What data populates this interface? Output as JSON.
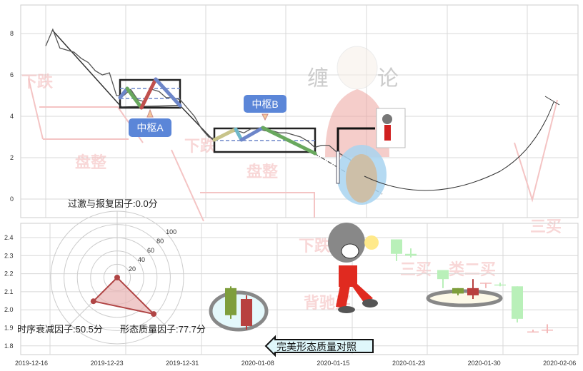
{
  "chart_data": [
    {
      "type": "line",
      "panel": "top",
      "ylim": [
        -1,
        9.3
      ],
      "y_ticks": [
        "0",
        "2",
        "4",
        "6",
        "8"
      ],
      "grid": true,
      "price": [
        7.4,
        8.2,
        7.3,
        7.2,
        7.1,
        6.8,
        6.6,
        6.2,
        6.0,
        6.1,
        5.0,
        5.0,
        5.3,
        4.8,
        4.7,
        5.3,
        5.2,
        4.9,
        4.9,
        4.8,
        4.4,
        4.0,
        3.4,
        3.0,
        2.9,
        3.1,
        3.2,
        3.3,
        3.2,
        3.4,
        3.4,
        3.3,
        3.3,
        3.2,
        3.2,
        3.1,
        3.0,
        2.8,
        2.5,
        2.6,
        2.6,
        2.3,
        2.1,
        1.9,
        1.4,
        1.3
      ],
      "zhongshu": [
        {
          "label": "中枢A",
          "high": 5.8,
          "low": 4.4,
          "upper_dash": 5.4,
          "lower_dash": 4.9
        },
        {
          "label": "中枢B",
          "high": 3.4,
          "low": 2.3,
          "upper_dash": 3.4,
          "lower_dash": 2.8
        }
      ],
      "colors": {
        "price": "#555555",
        "box": "#222222",
        "label_bg": "#5b86d8",
        "stroke_blue": "#6d86c9",
        "stroke_green": "#69a85e",
        "stroke_red": "#c0504d",
        "stroke_tan": "#c8c48a",
        "stroke_cyan": "#6fb8c8"
      }
    },
    {
      "type": "candlestick",
      "panel": "bottom",
      "ylim": [
        1.75,
        2.48
      ],
      "y_ticks": [
        "1.8",
        "1.9",
        "2.0",
        "2.1",
        "2.2",
        "2.3",
        "2.4"
      ],
      "x_ticks": [
        "2019-12-16",
        "2019-12-23",
        "2019-12-31",
        "2020-01-08",
        "2020-01-15",
        "2020-01-23",
        "2020-01-30",
        "2020-02-06"
      ],
      "grid": true,
      "candles": [
        {
          "open": 1.97,
          "close": 2.12,
          "high": 2.13,
          "low": 1.95,
          "color": "#7e9e3c"
        },
        {
          "open": 2.06,
          "close": 1.91,
          "high": 2.08,
          "low": 1.89,
          "color": "#b8403f"
        },
        {
          "open": 2.39,
          "close": 2.31,
          "high": 2.39,
          "low": 2.27,
          "color": "#b9f0b9"
        },
        {
          "open": 2.31,
          "close": 2.3,
          "high": 2.34,
          "low": 2.29,
          "color": "#b9f0b9"
        },
        {
          "open": 2.22,
          "close": 2.17,
          "high": 2.22,
          "low": 2.12,
          "color": "#b9f0b9"
        },
        {
          "open": 2.12,
          "close": 2.09,
          "high": 2.12,
          "low": 2.08,
          "color": "#7e9e3c"
        },
        {
          "open": 2.08,
          "close": 2.12,
          "high": 2.17,
          "low": 2.06,
          "color": "#b8403f"
        },
        {
          "open": 2.15,
          "close": 2.15,
          "high": 2.15,
          "low": 2.12,
          "color": "#f4b8b8"
        },
        {
          "open": 2.14,
          "close": 2.14,
          "high": 2.15,
          "low": 2.13,
          "color": "#b9f0b9"
        },
        {
          "open": 2.13,
          "close": 1.95,
          "high": 2.13,
          "low": 1.93,
          "color": "#b9f0b9"
        },
        {
          "open": 1.88,
          "close": 1.88,
          "high": 1.89,
          "low": 1.88,
          "color": "#f4b8b8"
        },
        {
          "open": 1.89,
          "close": 1.89,
          "high": 1.92,
          "low": 1.87,
          "color": "#f4b8b8"
        }
      ]
    },
    {
      "type": "radar",
      "ring_ticks": [
        "20",
        "40",
        "60",
        "80",
        "100"
      ],
      "axes": [
        {
          "label": "过激与报复因子:0.0分",
          "value": 0.0
        },
        {
          "label": "时序衰减因子:50.5分",
          "value": 50.5
        },
        {
          "label": "形态质量因子:77.7分",
          "value": 77.7
        }
      ],
      "colors": {
        "fill": "#e8b4b4",
        "stroke": "#b04545"
      }
    }
  ],
  "watermarks": {
    "down1": "下跌",
    "flat1": "盘整",
    "down2": "下跌",
    "flat2": "盘整",
    "down3": "下跌",
    "divergence": "背驰买",
    "buy3": "三买",
    "buy3b": "三买",
    "buy2": "类二买",
    "logo_left": "缠",
    "logo_right": "论"
  },
  "compare_button": "完美形态质量对照"
}
